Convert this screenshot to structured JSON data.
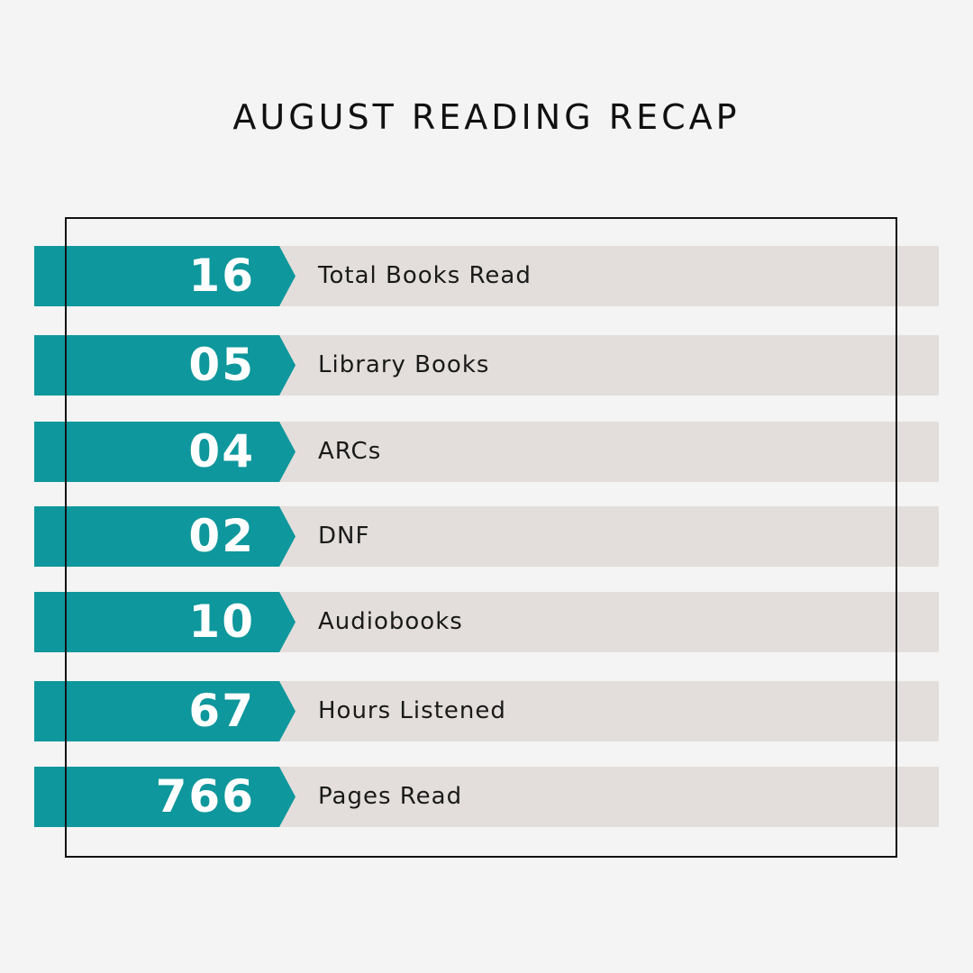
{
  "title": "AUGUST READING RECAP",
  "colors": {
    "accent": "#0e979c",
    "row_bg": "#e3dedb",
    "background": "#f4f4f4"
  },
  "stats": [
    {
      "value": "16",
      "label": "Total Books Read"
    },
    {
      "value": "05",
      "label": "Library Books"
    },
    {
      "value": "04",
      "label": "ARCs"
    },
    {
      "value": "02",
      "label": "DNF"
    },
    {
      "value": "10",
      "label": "Audiobooks"
    },
    {
      "value": "67",
      "label": "Hours Listened"
    },
    {
      "value": "766",
      "label": "Pages Read"
    }
  ]
}
